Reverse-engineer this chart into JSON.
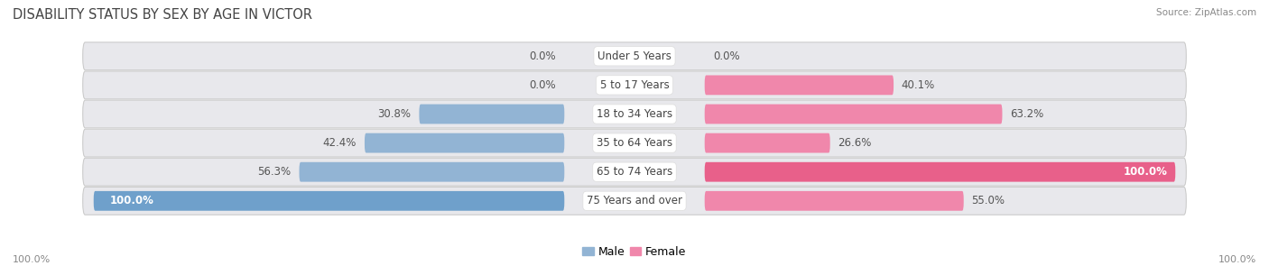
{
  "title": "DISABILITY STATUS BY SEX BY AGE IN VICTOR",
  "source": "Source: ZipAtlas.com",
  "categories": [
    "Under 5 Years",
    "5 to 17 Years",
    "18 to 34 Years",
    "35 to 64 Years",
    "65 to 74 Years",
    "75 Years and over"
  ],
  "male_values": [
    0.0,
    0.0,
    30.8,
    42.4,
    56.3,
    100.0
  ],
  "female_values": [
    0.0,
    40.1,
    63.2,
    26.6,
    100.0,
    55.0
  ],
  "male_color": "#92b4d4",
  "female_color": "#f087ab",
  "male_color_full": "#6fa0cb",
  "female_color_full": "#e8608a",
  "row_bg_color": "#e8e8ec",
  "max_value": 100.0,
  "bar_height": 0.62,
  "title_fontsize": 10.5,
  "label_fontsize": 8.5,
  "category_fontsize": 8.5
}
